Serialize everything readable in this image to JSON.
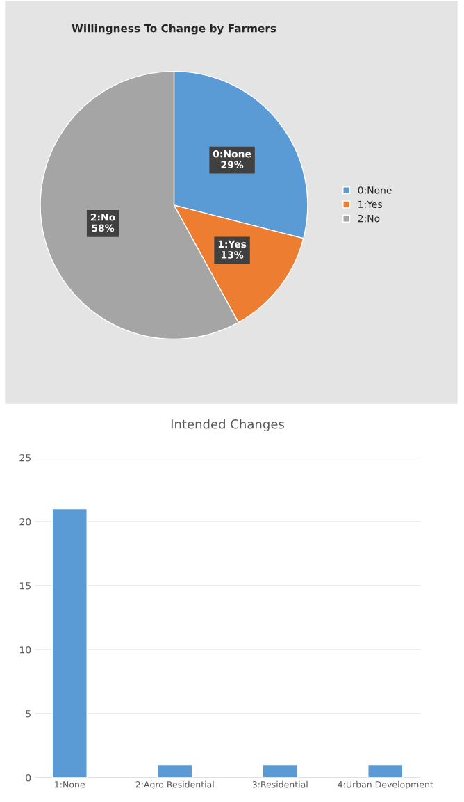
{
  "chart_data": [
    {
      "type": "pie",
      "title": "Willingness To Change by Farmers",
      "categories": [
        "0:None",
        "1:Yes",
        "2:No"
      ],
      "values": [
        29,
        13,
        58
      ],
      "colors": [
        "#5b9bd5",
        "#ed7d31",
        "#a5a5a5"
      ],
      "value_labels": [
        "29%",
        "13%",
        "58%"
      ],
      "legend": "right"
    },
    {
      "type": "bar",
      "title": "Intended Changes",
      "categories": [
        "1:None",
        "2:Agro Residential",
        "3:Residential",
        "4:Urban Development"
      ],
      "values": [
        21,
        1,
        1,
        1
      ],
      "color": "#5b9bd5",
      "ylim": [
        0,
        25
      ],
      "yticks": [
        0,
        5,
        10,
        15,
        20,
        25
      ],
      "grid": "y"
    }
  ]
}
